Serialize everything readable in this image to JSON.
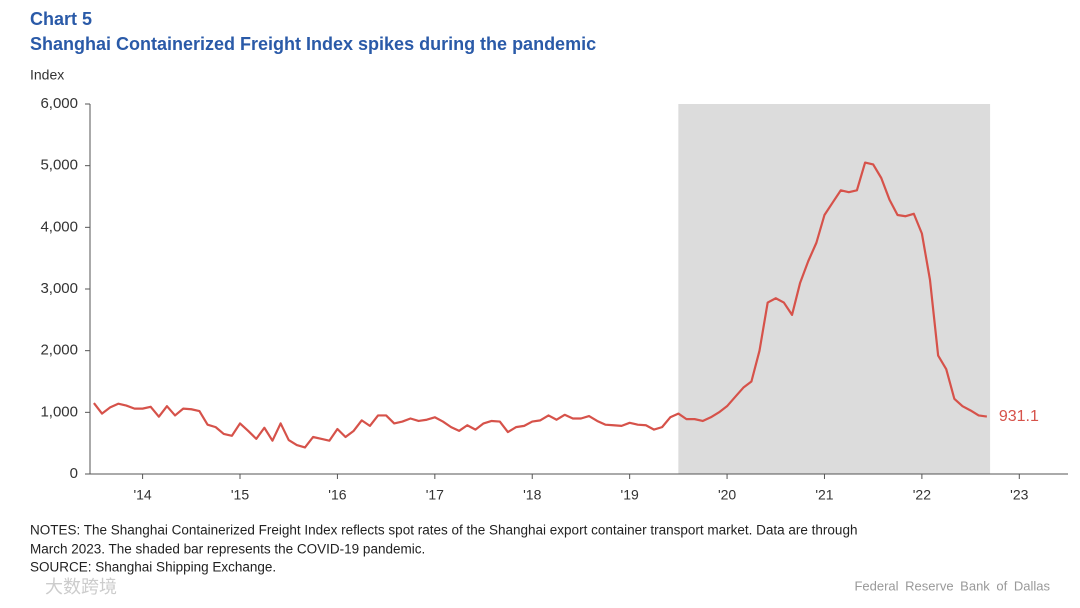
{
  "chart_data": {
    "type": "line",
    "title": "Chart 5",
    "subtitle": "Shanghai Containerized Freight Index spikes during the pandemic",
    "y_label": "Index",
    "notes": [
      "NOTES: The Shanghai Containerized Freight Index reflects spot rates of the Shanghai export container transport market. Data are through",
      "March 2023. The shaded bar represents the COVID-19 pandemic.",
      "SOURCE: Shanghai Shipping Exchange."
    ],
    "credit": "Federal Reserve Bank of Dallas",
    "watermark": "大数跨境",
    "shade": [
      2020.0,
      2023.2
    ],
    "shade_color": "#dcdcdc",
    "xlim": [
      2013.96,
      2024.0
    ],
    "ylim": [
      0,
      6000
    ],
    "yticks": [
      0,
      {
        "value": 1000,
        "label": "1,000"
      },
      {
        "value": 2000,
        "label": "2,000"
      },
      {
        "value": 3000,
        "label": "3,000"
      },
      {
        "value": 4000,
        "label": "4,000"
      },
      {
        "value": 5000,
        "label": "5,000"
      },
      {
        "value": 6000,
        "label": "6,000"
      }
    ],
    "xticks": [
      {
        "value": 2014.5,
        "label": "'14"
      },
      {
        "value": 2015.5,
        "label": "'15"
      },
      {
        "value": 2016.5,
        "label": "'16"
      },
      {
        "value": 2017.5,
        "label": "'17"
      },
      {
        "value": 2018.5,
        "label": "'18"
      },
      {
        "value": 2019.5,
        "label": "'19"
      },
      {
        "value": 2020.5,
        "label": "'20"
      },
      {
        "value": 2021.5,
        "label": "'21"
      },
      {
        "value": 2022.5,
        "label": "'22"
      },
      {
        "value": 2023.5,
        "label": "'23"
      }
    ],
    "x": [
      2014.0,
      2014.083,
      2014.167,
      2014.25,
      2014.333,
      2014.417,
      2014.5,
      2014.583,
      2014.667,
      2014.75,
      2014.833,
      2014.917,
      2015.0,
      2015.083,
      2015.167,
      2015.25,
      2015.333,
      2015.417,
      2015.5,
      2015.583,
      2015.667,
      2015.75,
      2015.833,
      2015.917,
      2016.0,
      2016.083,
      2016.167,
      2016.25,
      2016.333,
      2016.417,
      2016.5,
      2016.583,
      2016.667,
      2016.75,
      2016.833,
      2016.917,
      2017.0,
      2017.083,
      2017.167,
      2017.25,
      2017.333,
      2017.417,
      2017.5,
      2017.583,
      2017.667,
      2017.75,
      2017.833,
      2017.917,
      2018.0,
      2018.083,
      2018.167,
      2018.25,
      2018.333,
      2018.417,
      2018.5,
      2018.583,
      2018.667,
      2018.75,
      2018.833,
      2018.917,
      2019.0,
      2019.083,
      2019.167,
      2019.25,
      2019.333,
      2019.417,
      2019.5,
      2019.583,
      2019.667,
      2019.75,
      2019.833,
      2019.917,
      2020.0,
      2020.083,
      2020.167,
      2020.25,
      2020.333,
      2020.417,
      2020.5,
      2020.583,
      2020.667,
      2020.75,
      2020.833,
      2020.917,
      2021.0,
      2021.083,
      2021.167,
      2021.25,
      2021.333,
      2021.417,
      2021.5,
      2021.583,
      2021.667,
      2021.75,
      2021.833,
      2021.917,
      2022.0,
      2022.083,
      2022.167,
      2022.25,
      2022.333,
      2022.417,
      2022.5,
      2022.583,
      2022.667,
      2022.75,
      2022.833,
      2022.917,
      2023.0,
      2023.083,
      2023.167
    ],
    "series": [
      {
        "color": "#d6524a",
        "values": [
          1150,
          980,
          1080,
          1140,
          1110,
          1060,
          1060,
          1090,
          930,
          1100,
          950,
          1060,
          1050,
          1020,
          800,
          760,
          650,
          620,
          820,
          700,
          570,
          750,
          540,
          820,
          550,
          470,
          430,
          600,
          570,
          540,
          730,
          600,
          700,
          870,
          780,
          950,
          950,
          820,
          850,
          900,
          860,
          880,
          920,
          850,
          760,
          700,
          790,
          720,
          820,
          860,
          850,
          680,
          760,
          780,
          850,
          870,
          950,
          880,
          960,
          900,
          900,
          940,
          860,
          800,
          790,
          780,
          830,
          800,
          790,
          720,
          760,
          920,
          980,
          890,
          890,
          860,
          920,
          1000,
          1100,
          1250,
          1400,
          1500,
          2000,
          2780,
          2850,
          2780,
          2580,
          3100,
          3450,
          3750,
          4200,
          4400,
          4600,
          4570,
          4600,
          5050,
          5020,
          4800,
          4450,
          4200,
          4180,
          4220,
          3900,
          3150,
          1920,
          1700,
          1220,
          1100,
          1030,
          950,
          931.1
        ],
        "value_labels": {
          "110": "931.1"
        }
      }
    ]
  }
}
